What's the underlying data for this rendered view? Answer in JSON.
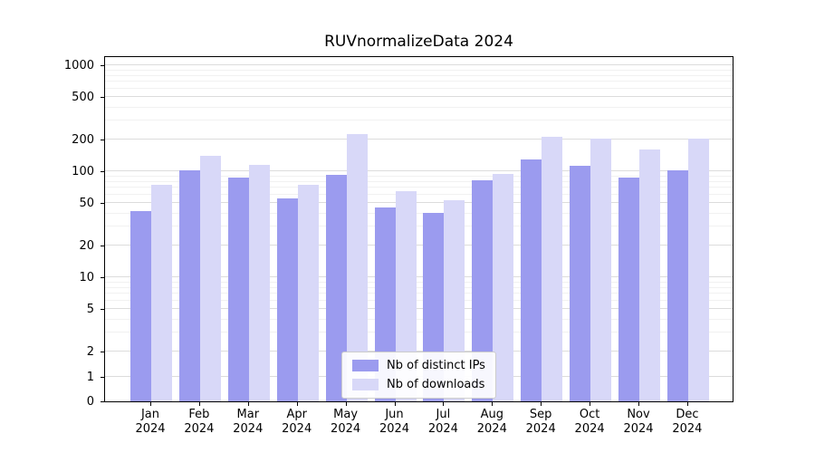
{
  "chart_data": {
    "type": "bar",
    "title": "RUVnormalizeData 2024",
    "categories": [
      {
        "month": "Jan",
        "year": "2024"
      },
      {
        "month": "Feb",
        "year": "2024"
      },
      {
        "month": "Mar",
        "year": "2024"
      },
      {
        "month": "Apr",
        "year": "2024"
      },
      {
        "month": "May",
        "year": "2024"
      },
      {
        "month": "Jun",
        "year": "2024"
      },
      {
        "month": "Jul",
        "year": "2024"
      },
      {
        "month": "Aug",
        "year": "2024"
      },
      {
        "month": "Sep",
        "year": "2024"
      },
      {
        "month": "Oct",
        "year": "2024"
      },
      {
        "month": "Nov",
        "year": "2024"
      },
      {
        "month": "Dec",
        "year": "2024"
      }
    ],
    "series": [
      {
        "name": "Nb of distinct IPs",
        "color": "#9b9bef",
        "values": [
          42,
          103,
          88,
          56,
          92,
          46,
          41,
          82,
          130,
          112,
          88,
          103
        ]
      },
      {
        "name": "Nb of downloads",
        "color": "#d8d8f8",
        "values": [
          75,
          140,
          115,
          75,
          225,
          65,
          53,
          95,
          212,
          205,
          160,
          205
        ]
      }
    ],
    "y_axis": {
      "scale": "symlog",
      "ticks": [
        0,
        1,
        2,
        5,
        10,
        20,
        50,
        100,
        200,
        500,
        1000
      ],
      "minor_gridlines": [
        3,
        4,
        6,
        7,
        8,
        9,
        30,
        40,
        60,
        70,
        80,
        90,
        300,
        400,
        600,
        700,
        800,
        900
      ],
      "ylim": [
        0,
        1250
      ]
    },
    "xlabel": "",
    "ylabel": "",
    "grid": true,
    "legend": {
      "position": "lower center"
    }
  }
}
